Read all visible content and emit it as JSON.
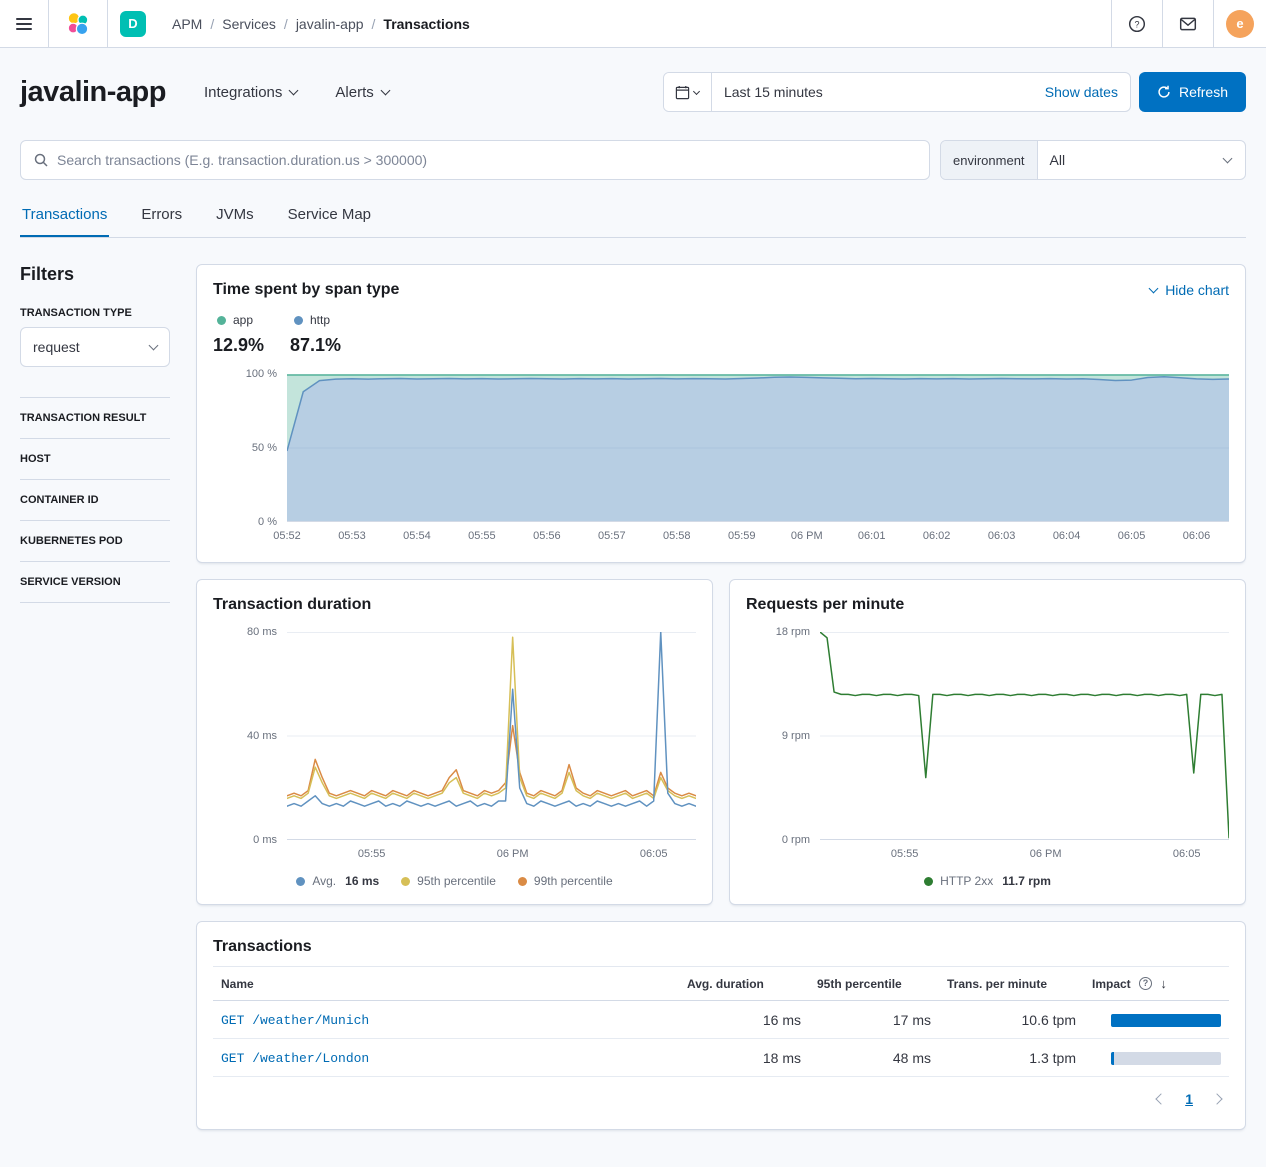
{
  "topbar": {
    "breadcrumbs": [
      "APM",
      "Services",
      "javalin-app",
      "Transactions"
    ],
    "space_badge": "D",
    "avatar_initial": "e"
  },
  "header": {
    "title": "javalin-app",
    "integrations": "Integrations",
    "alerts": "Alerts",
    "time_range": "Last 15 minutes",
    "show_dates": "Show dates",
    "refresh": "Refresh"
  },
  "search": {
    "placeholder": "Search transactions (E.g. transaction.duration.us > 300000)",
    "environment_label": "environment",
    "environment_value": "All"
  },
  "tabs": [
    "Transactions",
    "Errors",
    "JVMs",
    "Service Map"
  ],
  "filters": {
    "title": "Filters",
    "transaction_type_label": "TRANSACTION TYPE",
    "transaction_type_value": "request",
    "accordions": [
      "TRANSACTION RESULT",
      "HOST",
      "CONTAINER ID",
      "KUBERNETES POD",
      "SERVICE VERSION"
    ]
  },
  "chart_data": [
    {
      "id": "time_spent_by_span_type",
      "type": "area",
      "title": "Time spent by span type",
      "action_label": "Hide chart",
      "legend": [
        {
          "name": "app",
          "color": "#54B399",
          "value": "12.9%"
        },
        {
          "name": "http",
          "color": "#6092C0",
          "value": "87.1%"
        }
      ],
      "ylim": [
        0,
        100
      ],
      "stacked_to": 100,
      "y_ticks": [
        {
          "label": "100 %",
          "value": 100
        },
        {
          "label": "50 %",
          "value": 50
        },
        {
          "label": "0 %",
          "value": 0
        }
      ],
      "x_ticks": [
        {
          "label": "05:52",
          "index": 0
        },
        {
          "label": "05:53",
          "index": 4
        },
        {
          "label": "05:54",
          "index": 8
        },
        {
          "label": "05:55",
          "index": 12
        },
        {
          "label": "05:56",
          "index": 16
        },
        {
          "label": "05:57",
          "index": 20
        },
        {
          "label": "05:58",
          "index": 24
        },
        {
          "label": "05:59",
          "index": 28
        },
        {
          "label": "06 PM",
          "index": 32
        },
        {
          "label": "06:01",
          "index": 36
        },
        {
          "label": "06:02",
          "index": 40
        },
        {
          "label": "06:03",
          "index": 44
        },
        {
          "label": "06:04",
          "index": 48
        },
        {
          "label": "06:05",
          "index": 52
        },
        {
          "label": "06:06",
          "index": 56
        }
      ],
      "series": [
        {
          "name": "http",
          "color": "#6092C0",
          "values": [
            48,
            88,
            95.5,
            96.5,
            96.8,
            96.5,
            96.8,
            97,
            96.6,
            96.8,
            97,
            96.7,
            96.9,
            96.6,
            96.8,
            97,
            96.8,
            96.6,
            96.9,
            96.7,
            96.9,
            96.6,
            96.8,
            97,
            96.7,
            96.9,
            96.8,
            96.6,
            97,
            97.3,
            97.8,
            98,
            97.7,
            97.4,
            97.1,
            96.8,
            97,
            96.8,
            96.6,
            96.9,
            96.7,
            96.9,
            96.6,
            96.8,
            97,
            96.8,
            96.7,
            96.9,
            96.6,
            96.8,
            96.3,
            95.6,
            95.9,
            97.6,
            98.1,
            97.5,
            96.7,
            96.4,
            96.6
          ]
        },
        {
          "name": "app",
          "color": "#54B399",
          "remainder_to_100": true
        }
      ]
    },
    {
      "id": "transaction_duration",
      "type": "line",
      "title": "Transaction duration",
      "ylim": [
        0,
        80
      ],
      "y_ticks": [
        {
          "label": "80 ms",
          "value": 80
        },
        {
          "label": "40 ms",
          "value": 40
        },
        {
          "label": "0 ms",
          "value": 0
        }
      ],
      "x_ticks": [
        {
          "label": "05:55",
          "index": 12
        },
        {
          "label": "06 PM",
          "index": 32
        },
        {
          "label": "06:05",
          "index": 52
        }
      ],
      "series": [
        {
          "name": "Avg.",
          "value_label": "16 ms",
          "color": "#6092C0",
          "values": [
            13,
            14,
            13,
            15,
            17,
            14,
            13,
            14,
            13,
            15,
            14,
            13,
            14,
            15,
            13,
            14,
            13,
            15,
            14,
            13,
            14,
            13,
            14,
            15,
            13,
            14,
            15,
            13,
            14,
            13,
            15,
            15,
            58,
            20,
            14,
            13,
            15,
            14,
            13,
            14,
            15,
            13,
            14,
            13,
            15,
            14,
            13,
            14,
            13,
            14,
            15,
            13,
            15,
            80,
            18,
            14,
            13,
            14,
            13
          ]
        },
        {
          "name": "95th percentile",
          "value_label": "",
          "color": "#D6BF57",
          "values": [
            16,
            17,
            16,
            18,
            28,
            22,
            17,
            16,
            17,
            18,
            17,
            16,
            18,
            17,
            16,
            18,
            17,
            16,
            18,
            17,
            16,
            17,
            18,
            22,
            24,
            18,
            17,
            16,
            18,
            17,
            18,
            20,
            78,
            24,
            17,
            16,
            18,
            17,
            16,
            18,
            26,
            19,
            17,
            16,
            18,
            17,
            16,
            17,
            18,
            16,
            17,
            18,
            16,
            24,
            19,
            17,
            16,
            17,
            16
          ]
        },
        {
          "name": "99th percentile",
          "value_label": "",
          "color": "#DA8B45",
          "values": [
            17,
            18,
            17,
            19,
            31,
            24,
            18,
            17,
            18,
            19,
            18,
            17,
            19,
            18,
            17,
            19,
            18,
            17,
            19,
            18,
            17,
            18,
            19,
            24,
            27,
            19,
            18,
            17,
            19,
            18,
            19,
            22,
            44,
            26,
            18,
            17,
            19,
            18,
            17,
            19,
            29,
            20,
            18,
            17,
            19,
            18,
            17,
            18,
            19,
            17,
            18,
            19,
            17,
            26,
            20,
            18,
            17,
            18,
            17
          ]
        }
      ]
    },
    {
      "id": "requests_per_minute",
      "type": "line",
      "title": "Requests per minute",
      "ylim": [
        0,
        18
      ],
      "y_ticks": [
        {
          "label": "18 rpm",
          "value": 18
        },
        {
          "label": "9 rpm",
          "value": 9
        },
        {
          "label": "0 rpm",
          "value": 0
        }
      ],
      "x_ticks": [
        {
          "label": "05:55",
          "index": 12
        },
        {
          "label": "06 PM",
          "index": 32
        },
        {
          "label": "06:05",
          "index": 52
        }
      ],
      "series": [
        {
          "name": "HTTP 2xx",
          "value_label": "11.7 rpm",
          "color": "#2E7D32",
          "values": [
            18,
            17.5,
            12.8,
            12.6,
            12.6,
            12.5,
            12.6,
            12.6,
            12.5,
            12.6,
            12.6,
            12.5,
            12.6,
            12.6,
            12.5,
            5.4,
            12.6,
            12.6,
            12.5,
            12.6,
            12.6,
            12.5,
            12.6,
            12.6,
            12.5,
            12.6,
            12.6,
            12.5,
            12.6,
            12.6,
            12.5,
            12.6,
            12.6,
            12.5,
            12.6,
            12.6,
            12.5,
            12.6,
            12.6,
            12.5,
            12.6,
            12.6,
            12.5,
            12.6,
            12.6,
            12.5,
            12.6,
            12.6,
            12.5,
            12.6,
            12.6,
            12.5,
            12.6,
            5.8,
            12.6,
            12.6,
            12.5,
            12.6,
            0.2
          ]
        }
      ]
    }
  ],
  "transactions": {
    "title": "Transactions",
    "columns": [
      "Name",
      "Avg. duration",
      "95th percentile",
      "Trans. per minute",
      "Impact"
    ],
    "rows": [
      {
        "name": "GET /weather/Munich",
        "avg": "16 ms",
        "p95": "17 ms",
        "tpm": "10.6 tpm",
        "impact": 100
      },
      {
        "name": "GET /weather/London",
        "avg": "18 ms",
        "p95": "48 ms",
        "tpm": "1.3 tpm",
        "impact": 3
      }
    ],
    "page": "1"
  }
}
